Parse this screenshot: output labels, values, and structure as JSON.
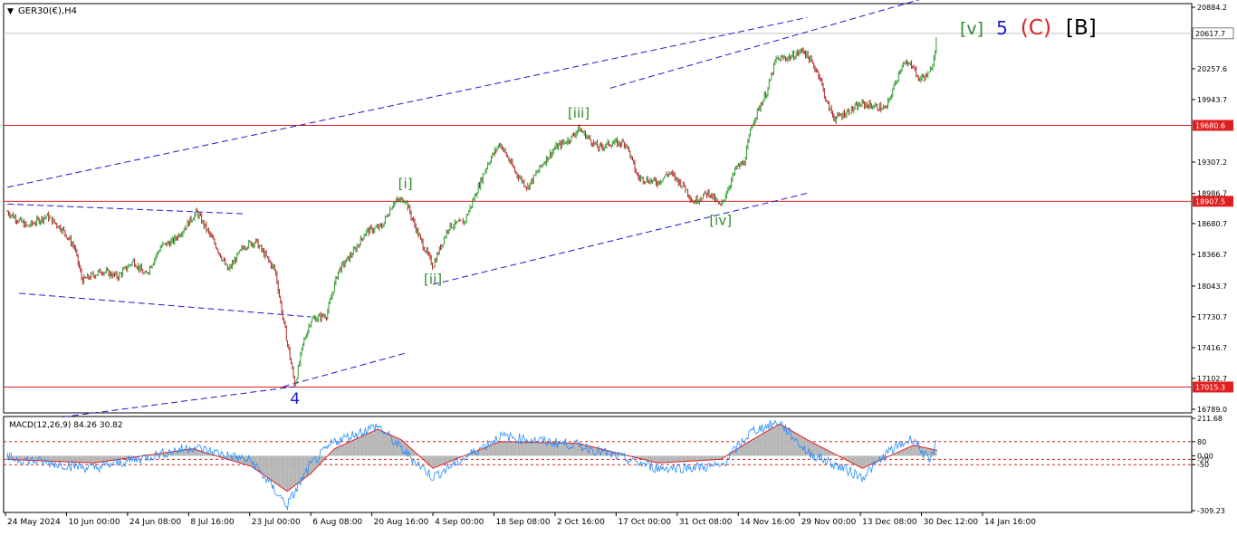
{
  "header": {
    "symbol": "GER30(€),H4",
    "menu_icon": "triangle-down-icon"
  },
  "wave_title": {
    "parts": [
      {
        "text": "[v]",
        "color": "#2e8b2e"
      },
      {
        "text": "5",
        "color": "#1a1acc"
      },
      {
        "text": "(C)",
        "color": "#e02020"
      },
      {
        "text": "[B]",
        "color": "#000000"
      }
    ]
  },
  "chart_data": [
    {
      "type": "candlestick",
      "title": "GER30(€),H4",
      "ylim": [
        16789.0,
        20884.2
      ],
      "price_ticks": [
        "20884.2",
        "20257.6",
        "19943.7",
        "19307.2",
        "18986.7",
        "18680.7",
        "18366.7",
        "18043.7",
        "17730.7",
        "17416.7",
        "17102.7",
        "16789.0"
      ],
      "price_tick_values": [
        20884.2,
        20257.6,
        19943.7,
        19307.2,
        18986.7,
        18680.7,
        18366.7,
        18043.7,
        17730.7,
        17416.7,
        17102.7,
        16789.0
      ],
      "current_price": {
        "label": "20617.7",
        "value": 20617.7
      },
      "horizontal_levels": [
        {
          "label": "19680.6",
          "value": 19680.6,
          "color": "#e02020"
        },
        {
          "label": "18907.5",
          "value": 18907.5,
          "color": "#e02020"
        },
        {
          "label": "17015.3",
          "value": 17015.3,
          "color": "#e02020"
        }
      ],
      "date_labels": [
        "24 May 2024",
        "10 Jun 00:00",
        "24 Jun 08:00",
        "8 Jul 16:00",
        "23 Jul 00:00",
        "6 Aug 08:00",
        "20 Aug 16:00",
        "4 Sep 00:00",
        "18 Sep 08:00",
        "2 Oct 16:00",
        "17 Oct 00:00",
        "31 Oct 08:00",
        "14 Nov 16:00",
        "29 Nov 00:00",
        "13 Dec 08:00",
        "30 Dec 12:00",
        "14 Jan 16:00"
      ],
      "price_path": [
        {
          "d": "24 May 2024",
          "v": 18800
        },
        {
          "d": "29 May 2024",
          "v": 18650
        },
        {
          "d": "3 Jun 2024",
          "v": 18760
        },
        {
          "d": "7 Jun 2024",
          "v": 18620
        },
        {
          "d": "10 Jun 2024",
          "v": 18440
        },
        {
          "d": "12 Jun 2024",
          "v": 18100
        },
        {
          "d": "17 Jun 2024",
          "v": 18200
        },
        {
          "d": "21 Jun 2024",
          "v": 18140
        },
        {
          "d": "25 Jun 2024",
          "v": 18300
        },
        {
          "d": "28 Jun 2024",
          "v": 18150
        },
        {
          "d": "2 Jul 2024",
          "v": 18450
        },
        {
          "d": "5 Jul 2024",
          "v": 18500
        },
        {
          "d": "8 Jul 2024",
          "v": 18640
        },
        {
          "d": "11 Jul 2024",
          "v": 18800
        },
        {
          "d": "16 Jul 2024",
          "v": 18450
        },
        {
          "d": "19 Jul 2024",
          "v": 18200
        },
        {
          "d": "23 Jul 2024",
          "v": 18450
        },
        {
          "d": "26 Jul 2024",
          "v": 18500
        },
        {
          "d": "31 Jul 2024",
          "v": 18200
        },
        {
          "d": "2 Aug 2024",
          "v": 17700
        },
        {
          "d": "5 Aug 2024",
          "v": 17030
        },
        {
          "d": "7 Aug 2024",
          "v": 17450
        },
        {
          "d": "9 Aug 2024",
          "v": 17700
        },
        {
          "d": "13 Aug 2024",
          "v": 17750
        },
        {
          "d": "16 Aug 2024",
          "v": 18200
        },
        {
          "d": "20 Aug 2024",
          "v": 18400
        },
        {
          "d": "23 Aug 2024",
          "v": 18600
        },
        {
          "d": "27 Aug 2024",
          "v": 18650
        },
        {
          "d": "30 Aug 2024",
          "v": 18900
        },
        {
          "d": "2 Sep 2024",
          "v": 18930
        },
        {
          "d": "4 Sep 2024",
          "v": 18700
        },
        {
          "d": "6 Sep 2024",
          "v": 18500
        },
        {
          "d": "9 Sep 2024",
          "v": 18250
        },
        {
          "d": "11 Sep 2024",
          "v": 18450
        },
        {
          "d": "13 Sep 2024",
          "v": 18650
        },
        {
          "d": "17 Sep 2024",
          "v": 18700
        },
        {
          "d": "19 Sep 2024",
          "v": 18900
        },
        {
          "d": "23 Sep 2024",
          "v": 19300
        },
        {
          "d": "26 Sep 2024",
          "v": 19500
        },
        {
          "d": "30 Sep 2024",
          "v": 19200
        },
        {
          "d": "3 Oct 2024",
          "v": 19050
        },
        {
          "d": "7 Oct 2024",
          "v": 19300
        },
        {
          "d": "10 Oct 2024",
          "v": 19450
        },
        {
          "d": "14 Oct 2024",
          "v": 19550
        },
        {
          "d": "16 Oct 2024",
          "v": 19650
        },
        {
          "d": "21 Oct 2024",
          "v": 19450
        },
        {
          "d": "24 Oct 2024",
          "v": 19500
        },
        {
          "d": "28 Oct 2024",
          "v": 19500
        },
        {
          "d": "31 Oct 2024",
          "v": 19150
        },
        {
          "d": "5 Nov 2024",
          "v": 19100
        },
        {
          "d": "8 Nov 2024",
          "v": 19200
        },
        {
          "d": "12 Nov 2024",
          "v": 19050
        },
        {
          "d": "14 Nov 2024",
          "v": 18900
        },
        {
          "d": "18 Nov 2024",
          "v": 19000
        },
        {
          "d": "21 Nov 2024",
          "v": 18850
        },
        {
          "d": "25 Nov 2024",
          "v": 19250
        },
        {
          "d": "27 Nov 2024",
          "v": 19300
        },
        {
          "d": "29 Nov 2024",
          "v": 19700
        },
        {
          "d": "3 Dec 2024",
          "v": 20050
        },
        {
          "d": "5 Dec 2024",
          "v": 20350
        },
        {
          "d": "9 Dec 2024",
          "v": 20380
        },
        {
          "d": "12 Dec 2024",
          "v": 20450
        },
        {
          "d": "16 Dec 2024",
          "v": 20200
        },
        {
          "d": "18 Dec 2024",
          "v": 19900
        },
        {
          "d": "20 Dec 2024",
          "v": 19750
        },
        {
          "d": "27 Dec 2024",
          "v": 19900
        },
        {
          "d": "2 Jan 2025",
          "v": 19850
        },
        {
          "d": "6 Jan 2025",
          "v": 20300
        },
        {
          "d": "9 Jan 2025",
          "v": 20300
        },
        {
          "d": "10 Jan 2025",
          "v": 20150
        },
        {
          "d": "13 Jan 2025",
          "v": 20200
        },
        {
          "d": "14 Jan 2025",
          "v": 20350
        },
        {
          "d": "15 Jan 2025",
          "v": 20617.7
        }
      ],
      "wave_labels": [
        {
          "text": "[i]",
          "d": "2 Sep 2024",
          "v": 18930,
          "color": "#2e8b2e"
        },
        {
          "text": "[ii]",
          "d": "9 Sep 2024",
          "v": 18250,
          "color": "#2e8b2e"
        },
        {
          "text": "[iii]",
          "d": "16 Oct 2024",
          "v": 19650,
          "color": "#2e8b2e"
        },
        {
          "text": "[iv]",
          "d": "21 Nov 2024",
          "v": 18850,
          "color": "#2e8b2e"
        },
        {
          "text": "4",
          "d": "5 Aug 2024",
          "v": 17030,
          "color": "#1a1acc"
        }
      ],
      "trendlines": [
        {
          "d1": "24 May 2024",
          "v1": 19050,
          "d2": "13 Dec 2024",
          "v2": 20780
        },
        {
          "d1": "2 Aug 2024",
          "v1": 17020,
          "d2": "2 Sep 2024",
          "v2": 17360
        },
        {
          "d1": "9 Sep 2024",
          "v1": 18060,
          "d2": "13 Dec 2024",
          "v2": 18990
        },
        {
          "d1": "24 Oct 2024",
          "v1": 20060,
          "d2": "13 Jan 2025",
          "v2": 20990
        },
        {
          "d1": "24 May 2024",
          "v1": 18880,
          "d2": "23 Jul 2024",
          "v2": 18780
        },
        {
          "d1": "27 May 2024",
          "v1": 17970,
          "d2": "9 Aug 2024",
          "v2": 17730
        },
        {
          "d1": "7 Jun 2024",
          "v1": 16710,
          "d2": "5 Aug 2024",
          "v2": 17020
        }
      ],
      "colors": {
        "bull": "#2e9b2e",
        "bear": "#b22222"
      }
    },
    {
      "type": "macd",
      "label": "MACD(12,26,9) 84.26 30.82",
      "ylim": [
        -309.23,
        211.68
      ],
      "value_ticks": [
        "211.68",
        "80",
        "0.00",
        "-50",
        "-20",
        "-309.23"
      ],
      "value_tick_values": [
        211.68,
        80,
        0.0,
        -50,
        -20,
        -309.23
      ],
      "last_macd": 84.26,
      "last_signal": 30.82,
      "signal_path": [
        {
          "d": "24 May 2024",
          "v": -20
        },
        {
          "d": "15 Jun 2024",
          "v": -40
        },
        {
          "d": "10 Jul 2024",
          "v": 40
        },
        {
          "d": "25 Jul 2024",
          "v": -60
        },
        {
          "d": "3 Aug 2024",
          "v": -200
        },
        {
          "d": "9 Aug 2024",
          "v": -100
        },
        {
          "d": "15 Aug 2024",
          "v": 40
        },
        {
          "d": "26 Aug 2024",
          "v": 150
        },
        {
          "d": "1 Sep 2024",
          "v": 90
        },
        {
          "d": "9 Sep 2024",
          "v": -70
        },
        {
          "d": "26 Sep 2024",
          "v": 80
        },
        {
          "d": "16 Oct 2024",
          "v": 70
        },
        {
          "d": "5 Nov 2024",
          "v": -40
        },
        {
          "d": "21 Nov 2024",
          "v": -20
        },
        {
          "d": "29 Nov 2024",
          "v": 90
        },
        {
          "d": "6 Dec 2024",
          "v": 180
        },
        {
          "d": "13 Dec 2024",
          "v": 90
        },
        {
          "d": "27 Dec 2024",
          "v": -70
        },
        {
          "d": "3 Jan 2025",
          "v": 0
        },
        {
          "d": "9 Jan 2025",
          "v": 60
        },
        {
          "d": "15 Jan 2025",
          "v": 30.82
        }
      ],
      "macd_path": [
        {
          "d": "24 May 2024",
          "v": -10
        },
        {
          "d": "15 Jun 2024",
          "v": -70
        },
        {
          "d": "10 Jul 2024",
          "v": 50
        },
        {
          "d": "25 Jul 2024",
          "v": -30
        },
        {
          "d": "3 Aug 2024",
          "v": -280
        },
        {
          "d": "9 Aug 2024",
          "v": -50
        },
        {
          "d": "15 Aug 2024",
          "v": 80
        },
        {
          "d": "26 Aug 2024",
          "v": 170
        },
        {
          "d": "1 Sep 2024",
          "v": 40
        },
        {
          "d": "9 Sep 2024",
          "v": -120
        },
        {
          "d": "26 Sep 2024",
          "v": 110
        },
        {
          "d": "16 Oct 2024",
          "v": 60
        },
        {
          "d": "5 Nov 2024",
          "v": -70
        },
        {
          "d": "21 Nov 2024",
          "v": -60
        },
        {
          "d": "29 Nov 2024",
          "v": 140
        },
        {
          "d": "6 Dec 2024",
          "v": 190
        },
        {
          "d": "13 Dec 2024",
          "v": 20
        },
        {
          "d": "27 Dec 2024",
          "v": -120
        },
        {
          "d": "3 Jan 2025",
          "v": 30
        },
        {
          "d": "9 Jan 2025",
          "v": 100
        },
        {
          "d": "13 Jan 2025",
          "v": -40
        },
        {
          "d": "15 Jan 2025",
          "v": 84.26
        }
      ],
      "reference_levels": [
        80,
        -50,
        -20
      ],
      "colors": {
        "histogram": "#b4b4b4",
        "macd_line": "#1e8cff",
        "signal_line": "#e02020",
        "levels": "#e02020"
      }
    }
  ]
}
